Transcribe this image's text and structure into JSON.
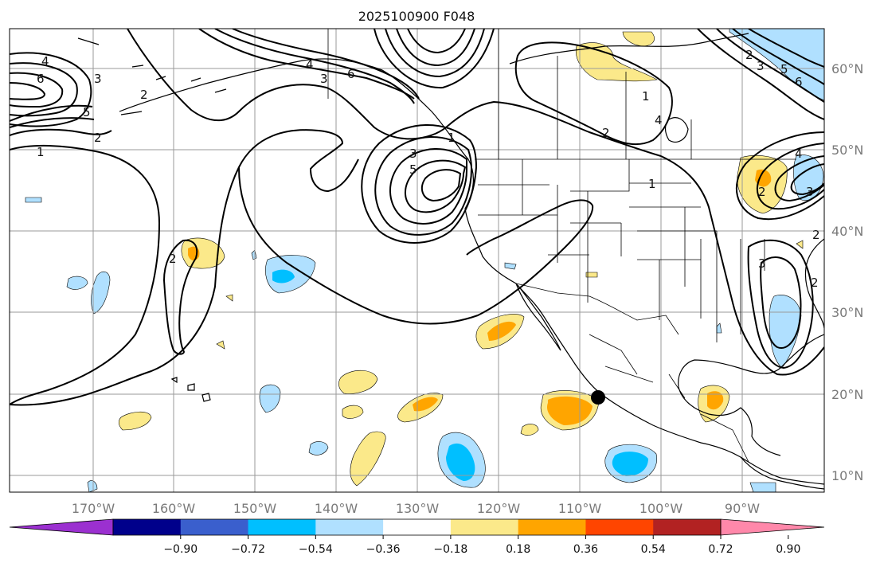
{
  "title": "2025100900 F048",
  "map": {
    "lon_labels": [
      "170°W",
      "160°W",
      "150°W",
      "140°W",
      "130°W",
      "120°W",
      "110°W",
      "100°W",
      "90°W"
    ],
    "lat_labels": [
      "60°N",
      "50°N",
      "40°N",
      "30°N",
      "20°N",
      "10°N"
    ],
    "contour_labels": [
      "4",
      "6",
      "3",
      "5",
      "1",
      "2",
      "2",
      "2",
      "3",
      "5",
      "4",
      "3",
      "6",
      "1",
      "1",
      "4",
      "2",
      "1",
      "2",
      "3",
      "5",
      "6",
      "4",
      "2",
      "3",
      "2",
      "3",
      "2"
    ],
    "marker": "storm-position-dot"
  },
  "colorbar": {
    "ticks": [
      "−0.90",
      "−0.72",
      "−0.54",
      "−0.36",
      "−0.18",
      "0.18",
      "0.36",
      "0.54",
      "0.72",
      "0.90"
    ],
    "colors": [
      "#9b30d0",
      "#00008b",
      "#3a5fcd",
      "#00bfff",
      "#b0e0ff",
      "#ffffff",
      "#fbe98a",
      "#ffa500",
      "#ff4500",
      "#b22222",
      "#ff88aa"
    ],
    "extend": "both"
  },
  "colors": {
    "light_blue": "#b0e0ff",
    "blue": "#00bfff",
    "yellow": "#fbe98a",
    "orange": "#ffa500",
    "contour": "#000000",
    "grid": "#9a9a9a"
  }
}
